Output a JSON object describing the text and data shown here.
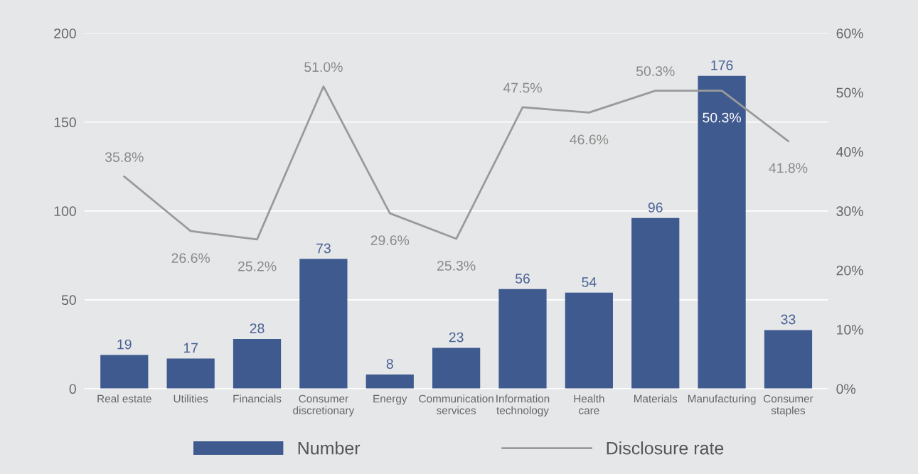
{
  "chart_data": {
    "type": "bar",
    "categories": [
      "Real estate",
      "Utilities",
      "Financials",
      "Consumer\ndiscretionary",
      "Energy",
      "Communication\nservices",
      "Information\ntechnology",
      "Health\ncare",
      "Materials",
      "Manufacturing",
      "Consumer\nstaples"
    ],
    "series": [
      {
        "name": "Number",
        "color": "#3f5a8f",
        "values": [
          19,
          17,
          28,
          73,
          8,
          23,
          56,
          54,
          96,
          176,
          33
        ],
        "value_labels": [
          "19",
          "17",
          "28",
          "73",
          "8",
          "23",
          "56",
          "54",
          "96",
          "176",
          "33"
        ]
      },
      {
        "name": "Disclosure rate",
        "type": "line",
        "axis": "y2",
        "color": "#9a9a9a",
        "values": [
          35.8,
          26.6,
          25.2,
          51.0,
          29.6,
          25.3,
          47.5,
          46.6,
          50.3,
          50.3,
          41.8
        ],
        "value_labels": [
          "35.8%",
          "26.6%",
          "25.2%",
          "51.0%",
          "29.6%",
          "25.3%",
          "47.5%",
          "46.6%",
          "50.3%",
          "50.3%",
          "41.8%"
        ]
      }
    ],
    "ylim": [
      0,
      200
    ],
    "yticks": [
      0,
      50,
      100,
      150,
      200
    ],
    "y2lim": [
      0,
      60
    ],
    "y2ticks": [
      {
        "value": 0,
        "label": "0%"
      },
      {
        "value": 10,
        "label": "10%"
      },
      {
        "value": 20,
        "label": "20%"
      },
      {
        "value": 30,
        "label": "30%"
      },
      {
        "value": 40,
        "label": "40%"
      },
      {
        "value": 50,
        "label": "50%"
      },
      {
        "value": 60,
        "label": "60%"
      }
    ],
    "grid": "y",
    "legend": "bottom",
    "marker": "none",
    "line_style": "solid"
  }
}
